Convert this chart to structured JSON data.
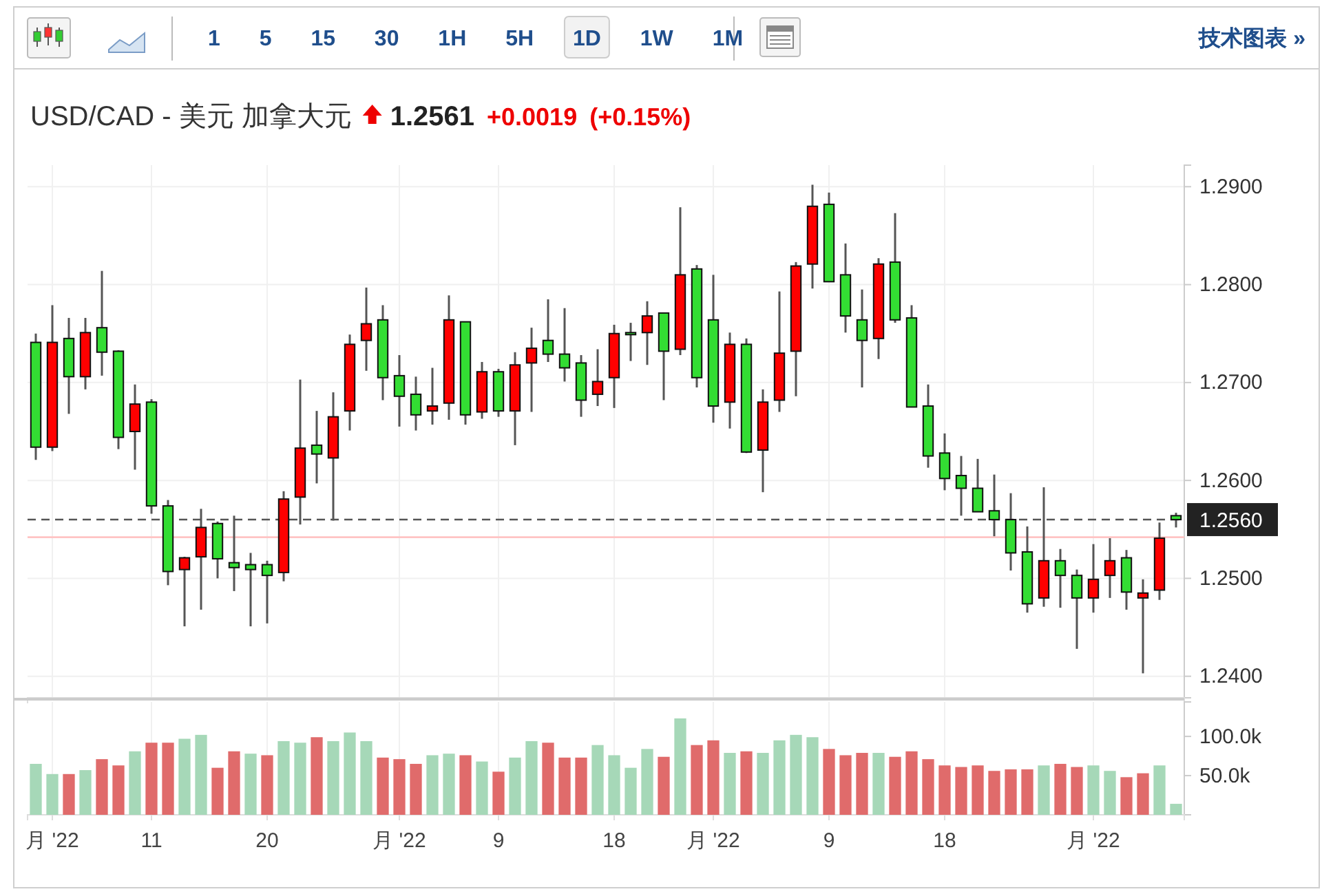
{
  "chart_data": [
    {
      "type": "candlestick",
      "title": "USD/CAD - 美元 加拿大元",
      "annotations": [
        "1.2561",
        "+0.0019",
        "(+0.15%)",
        "1 5 15 30 1H 5H 1D 1W 1M",
        "技术图表 »"
      ],
      "categories": [
        null,
        null,
        null,
        null,
        null,
        null,
        null,
        null,
        null,
        null,
        null,
        null,
        null,
        null,
        null,
        null,
        null,
        null,
        null,
        null,
        null,
        null,
        null,
        null,
        null,
        null,
        null,
        null,
        null,
        null,
        null,
        null,
        null,
        null,
        null,
        null,
        null,
        null,
        null,
        null,
        null,
        null,
        null,
        null,
        null,
        null,
        null,
        null,
        null,
        null,
        null,
        null,
        null,
        null,
        null,
        null,
        null,
        null,
        null,
        null,
        null,
        null,
        null,
        null,
        null,
        null,
        null,
        null,
        null,
        null
      ],
      "ohlc": [
        [
          1.2741,
          1.275,
          1.2621,
          1.2634
        ],
        [
          1.2634,
          1.2779,
          1.263,
          1.2741
        ],
        [
          1.2745,
          1.2766,
          1.2668,
          1.2706
        ],
        [
          1.2706,
          1.2766,
          1.2693,
          1.2751
        ],
        [
          1.2756,
          1.2814,
          1.2707,
          1.2731
        ],
        [
          1.2732,
          1.2733,
          1.2632,
          1.2644
        ],
        [
          1.265,
          1.2698,
          1.2611,
          1.2678
        ],
        [
          1.268,
          1.2683,
          1.2566,
          1.2574
        ],
        [
          1.2574,
          1.258,
          1.2493,
          1.2507
        ],
        [
          1.2509,
          1.2522,
          1.2451,
          1.2521
        ],
        [
          1.2522,
          1.2571,
          1.2468,
          1.2552
        ],
        [
          1.2556,
          1.2558,
          1.25,
          1.252
        ],
        [
          1.2516,
          1.2564,
          1.2487,
          1.2511
        ],
        [
          1.2514,
          1.2526,
          1.2451,
          1.2509
        ],
        [
          1.2514,
          1.2518,
          1.2454,
          1.2503
        ],
        [
          1.2506,
          1.2589,
          1.2497,
          1.2581
        ],
        [
          1.2583,
          1.2703,
          1.2555,
          1.2633
        ],
        [
          1.2636,
          1.2671,
          1.2597,
          1.2627
        ],
        [
          1.2623,
          1.269,
          1.2559,
          1.2665
        ],
        [
          1.2671,
          1.2749,
          1.2651,
          1.2739
        ],
        [
          1.2743,
          1.2797,
          1.2712,
          1.276
        ],
        [
          1.2764,
          1.2779,
          1.2682,
          1.2705
        ],
        [
          1.2707,
          1.2728,
          1.2655,
          1.2686
        ],
        [
          1.2688,
          1.2706,
          1.2651,
          1.2667
        ],
        [
          1.2671,
          1.2715,
          1.2657,
          1.2676
        ],
        [
          1.2679,
          1.2789,
          1.2662,
          1.2764
        ],
        [
          1.2762,
          1.2762,
          1.2657,
          1.2667
        ],
        [
          1.267,
          1.2721,
          1.2663,
          1.2711
        ],
        [
          1.2711,
          1.2714,
          1.2665,
          1.2671
        ],
        [
          1.2671,
          1.2731,
          1.2636,
          1.2718
        ],
        [
          1.272,
          1.2756,
          1.267,
          1.2735
        ],
        [
          1.2743,
          1.2785,
          1.2721,
          1.2729
        ],
        [
          1.2729,
          1.2776,
          1.2701,
          1.2715
        ],
        [
          1.272,
          1.2728,
          1.2665,
          1.2682
        ],
        [
          1.2688,
          1.2734,
          1.2676,
          1.2701
        ],
        [
          1.2705,
          1.2759,
          1.2674,
          1.275
        ],
        [
          1.2751,
          1.2761,
          1.2722,
          1.275
        ],
        [
          1.2751,
          1.2783,
          1.2718,
          1.2768
        ],
        [
          1.2771,
          1.2771,
          1.2682,
          1.2732
        ],
        [
          1.2734,
          1.2879,
          1.2728,
          1.281
        ],
        [
          1.2816,
          1.282,
          1.2695,
          1.2705
        ],
        [
          1.2764,
          1.281,
          1.2659,
          1.2676
        ],
        [
          1.268,
          1.2751,
          1.2653,
          1.2739
        ],
        [
          1.2739,
          1.2745,
          1.2628,
          1.2629
        ],
        [
          1.2631,
          1.2693,
          1.2588,
          1.268
        ],
        [
          1.2682,
          1.2793,
          1.267,
          1.273
        ],
        [
          1.2732,
          1.2823,
          1.2686,
          1.2819
        ],
        [
          1.2821,
          1.2902,
          1.2796,
          1.288
        ],
        [
          1.2882,
          1.2894,
          1.2803,
          1.2803
        ],
        [
          1.281,
          1.2842,
          1.2751,
          1.2768
        ],
        [
          1.2764,
          1.2795,
          1.2695,
          1.2743
        ],
        [
          1.2745,
          1.2827,
          1.2724,
          1.2821
        ],
        [
          1.2823,
          1.2873,
          1.2761,
          1.2764
        ],
        [
          1.2766,
          1.2779,
          1.2675,
          1.2675
        ],
        [
          1.2676,
          1.2698,
          1.2613,
          1.2625
        ],
        [
          1.2628,
          1.2648,
          1.259,
          1.2602
        ],
        [
          1.2605,
          1.2625,
          1.2564,
          1.2592
        ],
        [
          1.2592,
          1.2622,
          1.2568,
          1.2568
        ],
        [
          1.2569,
          1.2606,
          1.2543,
          1.256
        ],
        [
          1.256,
          1.2587,
          1.2508,
          1.2526
        ],
        [
          1.2527,
          1.2553,
          1.2465,
          1.2474
        ],
        [
          1.248,
          1.2593,
          1.2471,
          1.2518
        ],
        [
          1.2518,
          1.253,
          1.247,
          1.2503
        ],
        [
          1.2503,
          1.2509,
          1.2428,
          1.248
        ],
        [
          1.248,
          1.2535,
          1.2465,
          1.2499
        ],
        [
          1.2503,
          1.2541,
          1.248,
          1.2518
        ],
        [
          1.2521,
          1.2529,
          1.2468,
          1.2486
        ],
        [
          1.248,
          1.2499,
          1.2403,
          1.2485
        ],
        [
          1.2488,
          1.2557,
          1.2478,
          1.2541
        ],
        [
          1.2564,
          1.2567,
          1.2552,
          1.256
        ]
      ],
      "colors": [
        "#33dd33",
        "#ff0000",
        "#33dd33",
        "#ff0000",
        "#33dd33",
        "#33dd33",
        "#ff0000",
        "#33dd33",
        "#33dd33",
        "#ff0000",
        "#ff0000",
        "#33dd33",
        "#33dd33",
        "#33dd33",
        "#33dd33",
        "#ff0000",
        "#ff0000",
        "#33dd33",
        "#ff0000",
        "#ff0000",
        "#ff0000",
        "#33dd33",
        "#33dd33",
        "#33dd33",
        "#ff0000",
        "#ff0000",
        "#33dd33",
        "#ff0000",
        "#33dd33",
        "#ff0000",
        "#ff0000",
        "#33dd33",
        "#33dd33",
        "#33dd33",
        "#ff0000",
        "#ff0000",
        "#33dd33",
        "#ff0000",
        "#33dd33",
        "#ff0000",
        "#33dd33",
        "#33dd33",
        "#ff0000",
        "#33dd33",
        "#ff0000",
        "#ff0000",
        "#ff0000",
        "#ff0000",
        "#33dd33",
        "#33dd33",
        "#33dd33",
        "#ff0000",
        "#33dd33",
        "#33dd33",
        "#33dd33",
        "#33dd33",
        "#33dd33",
        "#33dd33",
        "#33dd33",
        "#33dd33",
        "#33dd33",
        "#ff0000",
        "#33dd33",
        "#33dd33",
        "#ff0000",
        "#ff0000",
        "#33dd33",
        "#ff0000",
        "#ff0000",
        "#33dd33"
      ],
      "ylim": [
        1.2378,
        1.2922
      ],
      "yticks": [
        {
          "value": 1.24,
          "label": "1.2400"
        },
        {
          "value": 1.25,
          "label": "1.2500"
        },
        {
          "value": 1.26,
          "label": "1.2600"
        },
        {
          "value": 1.27,
          "label": "1.2700"
        },
        {
          "value": 1.28,
          "label": "1.2800"
        },
        {
          "value": 1.29,
          "label": "1.2900"
        }
      ],
      "ref_lines": [
        {
          "axis": "y",
          "value": 1.256,
          "label": "1.2560",
          "color": "#555555",
          "line_style": "dashed"
        },
        {
          "axis": "y",
          "value": 1.2542,
          "color": "#ffc4c4"
        }
      ],
      "grid": true,
      "tick_labels": "y"
    },
    {
      "type": "bar",
      "categories": [
        null,
        "月 '22",
        null,
        null,
        null,
        null,
        null,
        "11",
        null,
        null,
        null,
        null,
        null,
        null,
        "20",
        null,
        null,
        null,
        null,
        null,
        null,
        null,
        "月 '22",
        null,
        null,
        null,
        null,
        null,
        "9",
        null,
        null,
        null,
        null,
        null,
        null,
        "18",
        null,
        null,
        null,
        null,
        null,
        "月 '22",
        null,
        null,
        null,
        null,
        null,
        null,
        "9",
        null,
        null,
        null,
        null,
        null,
        null,
        "18",
        null,
        null,
        null,
        null,
        null,
        null,
        null,
        null,
        "月 '22",
        null,
        null,
        null,
        null,
        null
      ],
      "values": [
        65000,
        52000,
        52000,
        57000,
        71000,
        63000,
        81000,
        92000,
        92000,
        97000,
        102000,
        60000,
        81000,
        78000,
        76000,
        94000,
        92000,
        99000,
        94000,
        105000,
        94000,
        73000,
        71000,
        65000,
        76000,
        78000,
        76000,
        68000,
        55000,
        73000,
        94000,
        92000,
        73000,
        73000,
        89000,
        76000,
        60000,
        84000,
        74000,
        123000,
        89000,
        95000,
        79000,
        81000,
        79000,
        95000,
        102000,
        99000,
        84000,
        76000,
        79000,
        79000,
        74000,
        81000,
        71000,
        63000,
        61000,
        63000,
        56000,
        58000,
        58000,
        63000,
        65000,
        61000,
        63000,
        56000,
        48000,
        53000,
        63000,
        14000
      ],
      "colors": [
        "#a6d8b8",
        "#a6d8b8",
        "#e06b6b",
        "#a6d8b8",
        "#e06b6b",
        "#e06b6b",
        "#a6d8b8",
        "#e06b6b",
        "#e06b6b",
        "#a6d8b8",
        "#a6d8b8",
        "#e06b6b",
        "#e06b6b",
        "#a6d8b8",
        "#e06b6b",
        "#a6d8b8",
        "#a6d8b8",
        "#e06b6b",
        "#a6d8b8",
        "#a6d8b8",
        "#a6d8b8",
        "#e06b6b",
        "#e06b6b",
        "#e06b6b",
        "#a6d8b8",
        "#a6d8b8",
        "#e06b6b",
        "#a6d8b8",
        "#e06b6b",
        "#a6d8b8",
        "#a6d8b8",
        "#e06b6b",
        "#e06b6b",
        "#e06b6b",
        "#a6d8b8",
        "#a6d8b8",
        "#a6d8b8",
        "#a6d8b8",
        "#e06b6b",
        "#a6d8b8",
        "#e06b6b",
        "#e06b6b",
        "#a6d8b8",
        "#e06b6b",
        "#a6d8b8",
        "#a6d8b8",
        "#a6d8b8",
        "#a6d8b8",
        "#e06b6b",
        "#e06b6b",
        "#e06b6b",
        "#a6d8b8",
        "#e06b6b",
        "#e06b6b",
        "#e06b6b",
        "#e06b6b",
        "#e06b6b",
        "#e06b6b",
        "#e06b6b",
        "#e06b6b",
        "#e06b6b",
        "#a6d8b8",
        "#e06b6b",
        "#e06b6b",
        "#a6d8b8",
        "#a6d8b8",
        "#e06b6b",
        "#e06b6b",
        "#a6d8b8",
        "#a6d8b8"
      ],
      "ylim": [
        0,
        144000
      ],
      "yticks": [
        {
          "value": 50000,
          "label": "50.0k"
        },
        {
          "value": 100000,
          "label": "100.0k"
        }
      ],
      "grid": "x"
    }
  ]
}
